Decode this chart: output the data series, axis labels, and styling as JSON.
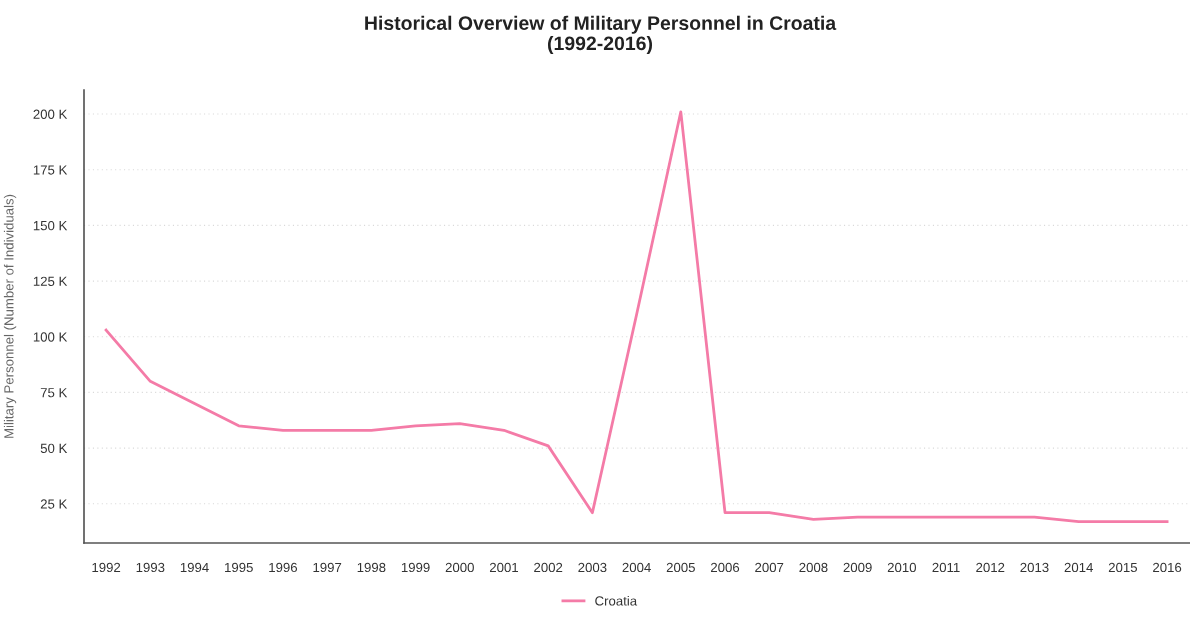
{
  "chart_data": {
    "type": "line",
    "title": "Historical Overview of Military Personnel in Croatia\n(1992-2016)",
    "ylabel": "Military Personnel (Number of Individuals)",
    "categories": [
      "1992",
      "1993",
      "1994",
      "1995",
      "1996",
      "1997",
      "1998",
      "1999",
      "2000",
      "2001",
      "2002",
      "2003",
      "2004",
      "2005",
      "2006",
      "2007",
      "2008",
      "2009",
      "2010",
      "2011",
      "2012",
      "2013",
      "2014",
      "2015",
      "2016"
    ],
    "series": [
      {
        "name": "Croatia",
        "color": "#f47ba7",
        "values": [
          103000,
          80000,
          70000,
          60000,
          58000,
          58000,
          58000,
          60000,
          61000,
          58000,
          51000,
          21000,
          110000,
          201000,
          21000,
          21000,
          18000,
          19000,
          19000,
          19000,
          19000,
          19000,
          17000,
          17000,
          17000
        ]
      }
    ],
    "ylim": [
      7400,
      210800
    ],
    "yticks": [
      {
        "value": 25000,
        "label": "25 K"
      },
      {
        "value": 50000,
        "label": "50 K"
      },
      {
        "value": 75000,
        "label": "75 K"
      },
      {
        "value": 100000,
        "label": "100 K"
      },
      {
        "value": 125000,
        "label": "125 K"
      },
      {
        "value": 150000,
        "label": "150 K"
      },
      {
        "value": 175000,
        "label": "175 K"
      },
      {
        "value": 200000,
        "label": "200 K"
      }
    ],
    "grid": "y",
    "legend": "bottom",
    "line_style": "solid"
  }
}
